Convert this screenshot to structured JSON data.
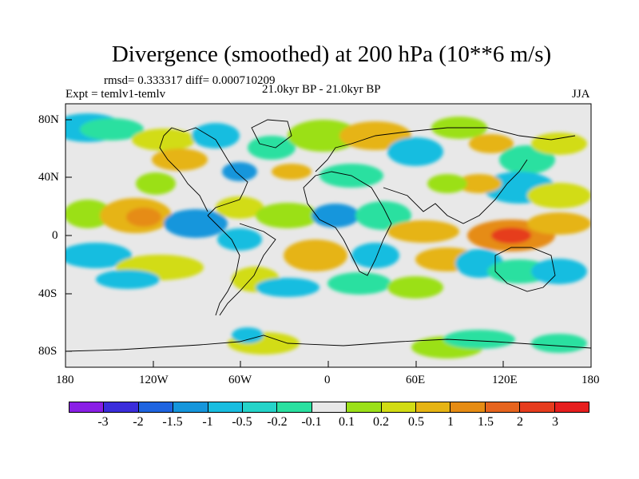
{
  "title": "Divergence (smoothed) at 200 hPa (10**6 m/s)",
  "stats": "rmsd= 0.333317 diff= 0.000710209",
  "experiment": "Expt = temlv1-temlv",
  "period": "21.0kyr BP - 21.0kyr BP",
  "season": "JJA",
  "y_ticks": [
    "80N",
    "40N",
    "0",
    "40S",
    "80S"
  ],
  "x_ticks": [
    "180",
    "120W",
    "60W",
    "0",
    "60E",
    "120E",
    "180"
  ],
  "colorbar": {
    "labels": [
      "-3",
      "-2",
      "-1.5",
      "-1",
      "-0.5",
      "-0.2",
      "-0.1",
      "0.1",
      "0.2",
      "0.5",
      "1",
      "1.5",
      "2",
      "3"
    ],
    "colors": [
      "#8a1fe6",
      "#3b2ddb",
      "#1f64e0",
      "#1596dc",
      "#19bde0",
      "#25d4c9",
      "#2ae0a0",
      "#e8e8e8",
      "#9be019",
      "#d2dc14",
      "#e6b414",
      "#e68c14",
      "#e6641e",
      "#e63c1e",
      "#e61e1e"
    ]
  },
  "map_colors": {
    "land_line": "#000000",
    "neutral": "#e8e8e8",
    "pos_low": "#9be019",
    "pos_mid": "#d2dc14",
    "pos_high": "#e6b414",
    "pos_strong": "#e68c14",
    "pos_max": "#e63c1e",
    "neg_low": "#2ae0a0",
    "neg_mid": "#19bde0",
    "neg_high": "#1596dc"
  }
}
